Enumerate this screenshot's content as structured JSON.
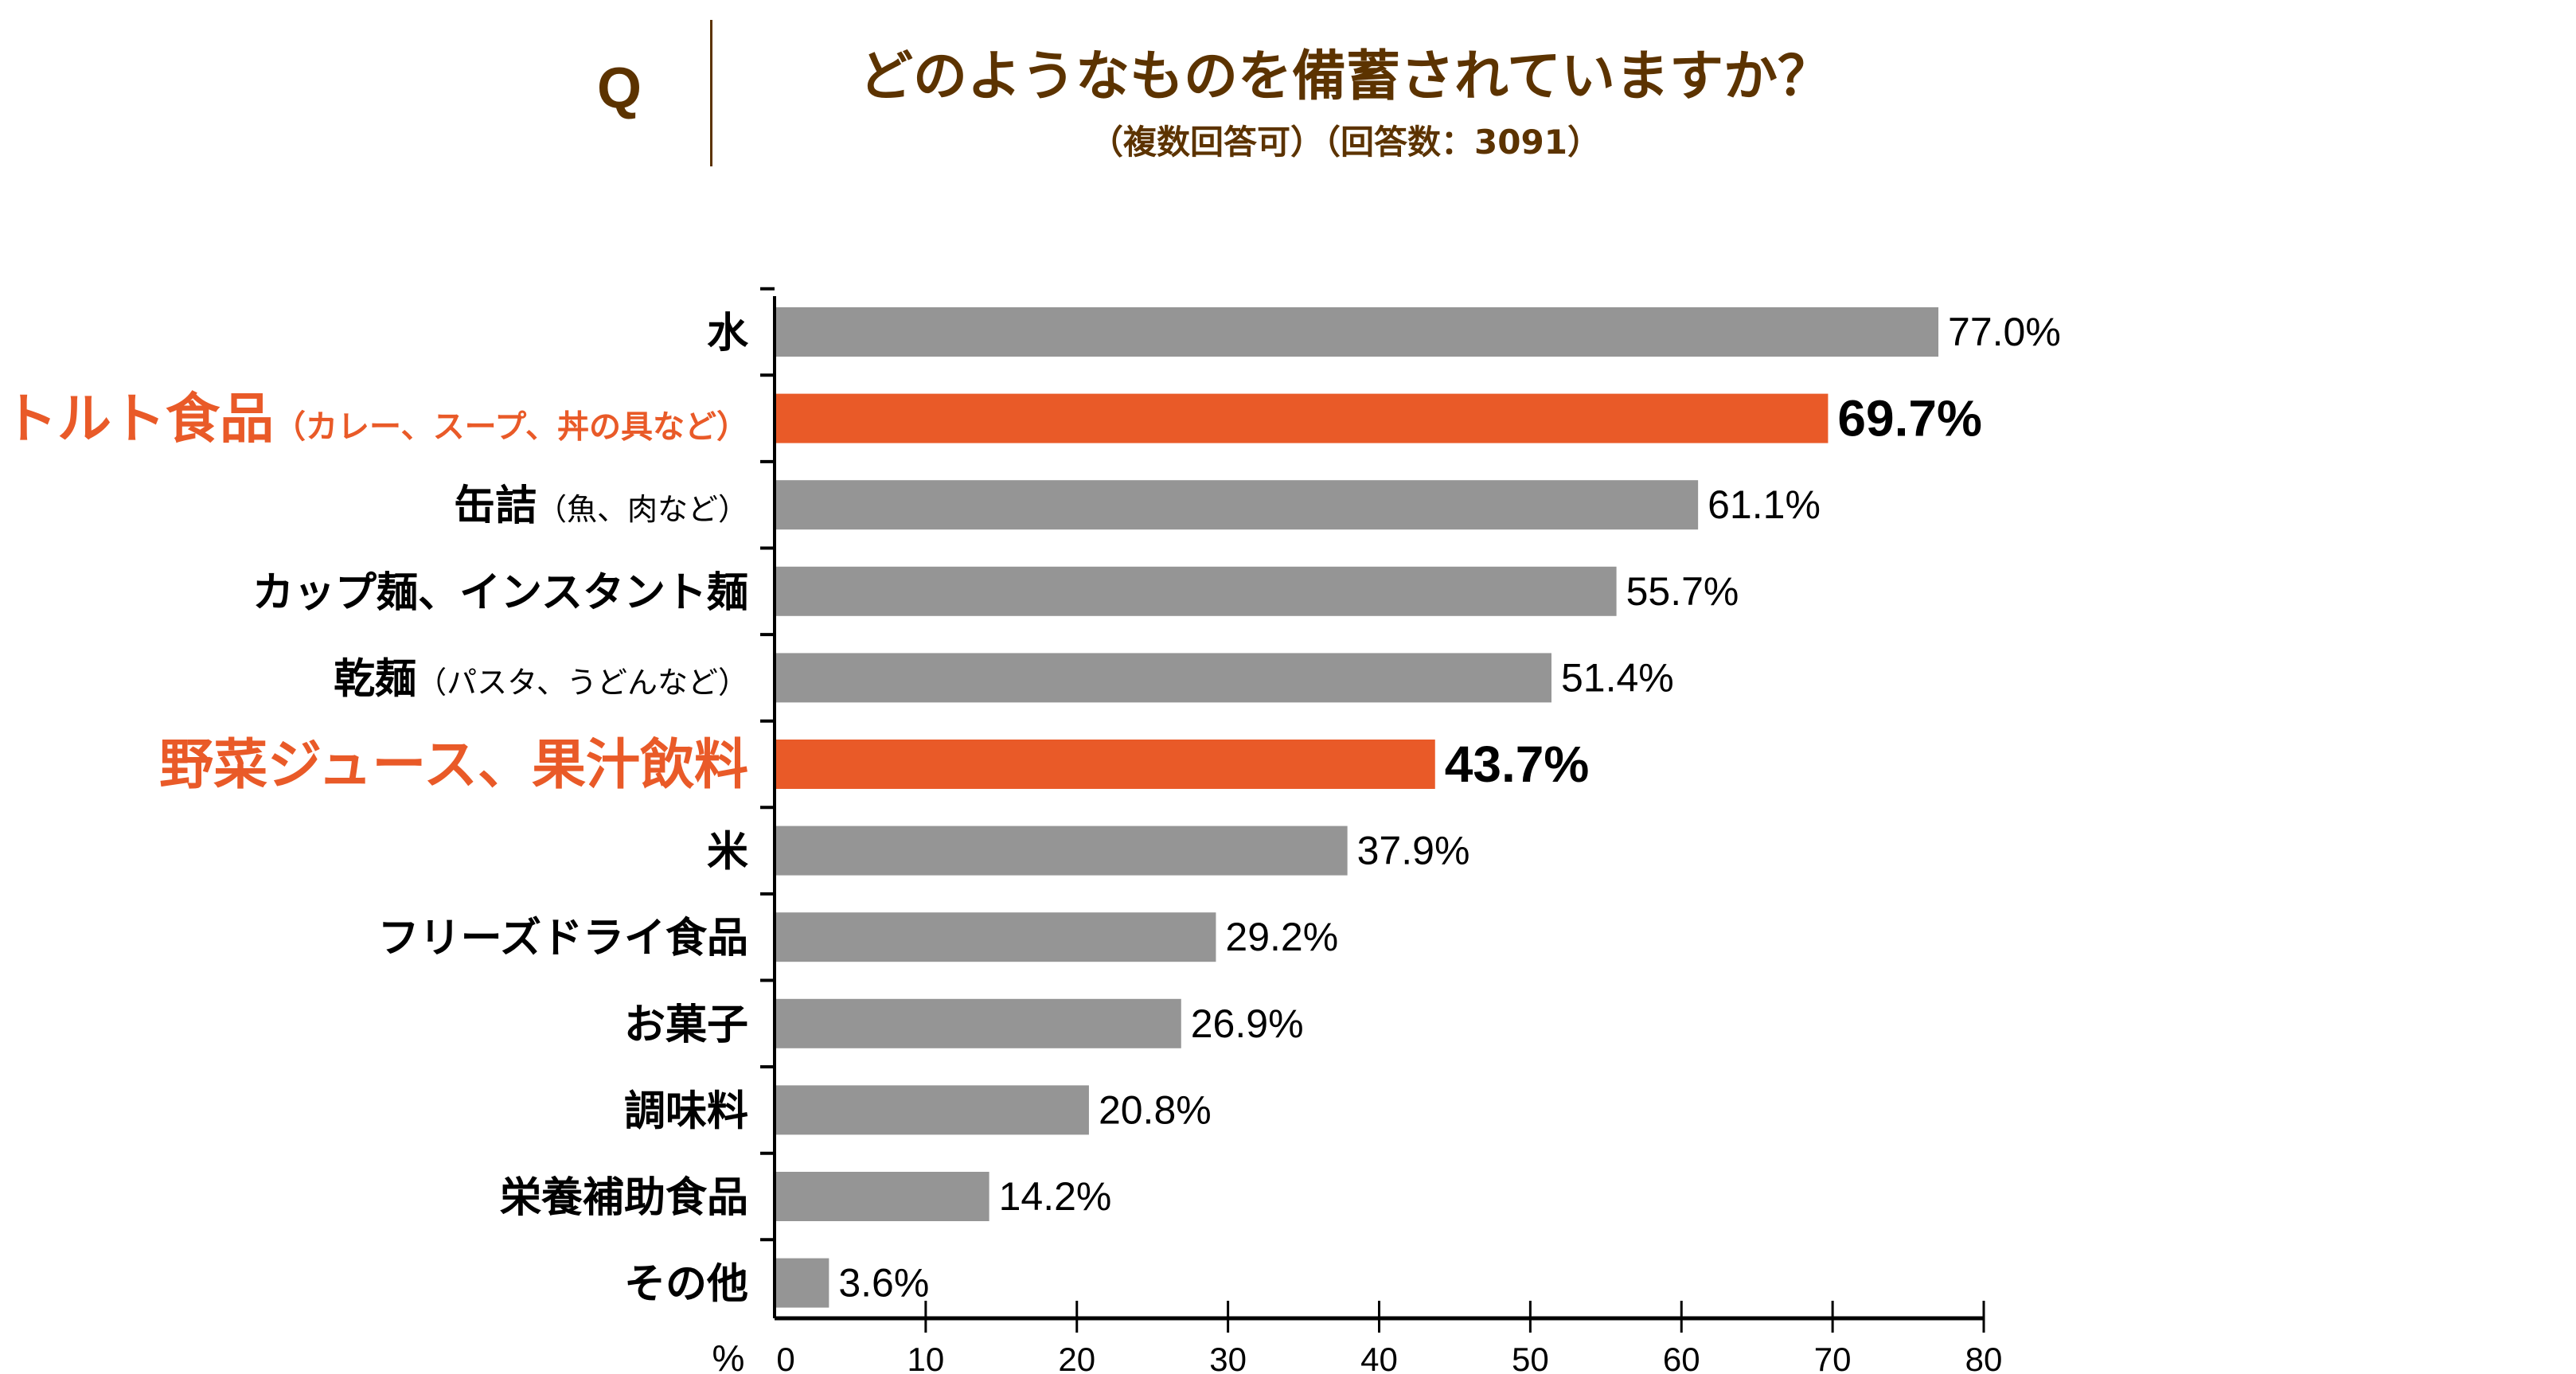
{
  "header": {
    "q_mark": "Q",
    "title": "どのようなものを備蓄されていますか？",
    "subtitle": "（複数回答可）（回答数：3091）"
  },
  "colors": {
    "title": "#5c3300",
    "highlight": "#e95a28",
    "bar": "#959595",
    "axis": "#000000"
  },
  "chart_data": {
    "type": "bar",
    "orientation": "horizontal",
    "title": "どのようなものを備蓄されていますか？",
    "subtitle": "（複数回答可）（回答数：3091）",
    "xlabel": "%",
    "xlim": [
      0,
      80
    ],
    "xticks": [
      0,
      10,
      20,
      30,
      40,
      50,
      60,
      70,
      80
    ],
    "grid": false,
    "categories": [
      {
        "main": "水",
        "note": "",
        "value": 77.0,
        "label": "77.0%",
        "highlight": false
      },
      {
        "main": "レトルト食品",
        "note": "（カレー、スープ、丼の具など）",
        "value": 69.7,
        "label": "69.7%",
        "highlight": true
      },
      {
        "main": "缶詰",
        "note": "（魚、肉など）",
        "value": 61.1,
        "label": "61.1%",
        "highlight": false
      },
      {
        "main": "カップ麺、インスタント麺",
        "note": "",
        "value": 55.7,
        "label": "55.7%",
        "highlight": false
      },
      {
        "main": "乾麺",
        "note": "（パスタ、うどんなど）",
        "value": 51.4,
        "label": "51.4%",
        "highlight": false
      },
      {
        "main": "野菜ジュース、果汁飲料",
        "note": "",
        "value": 43.7,
        "label": "43.7%",
        "highlight": true
      },
      {
        "main": "米",
        "note": "",
        "value": 37.9,
        "label": "37.9%",
        "highlight": false
      },
      {
        "main": "フリーズドライ食品",
        "note": "",
        "value": 29.2,
        "label": "29.2%",
        "highlight": false
      },
      {
        "main": "お菓子",
        "note": "",
        "value": 26.9,
        "label": "26.9%",
        "highlight": false
      },
      {
        "main": "調味料",
        "note": "",
        "value": 20.8,
        "label": "20.8%",
        "highlight": false
      },
      {
        "main": "栄養補助食品",
        "note": "",
        "value": 14.2,
        "label": "14.2%",
        "highlight": false
      },
      {
        "main": "その他",
        "note": "",
        "value": 3.6,
        "label": "3.6%",
        "highlight": false
      }
    ]
  }
}
